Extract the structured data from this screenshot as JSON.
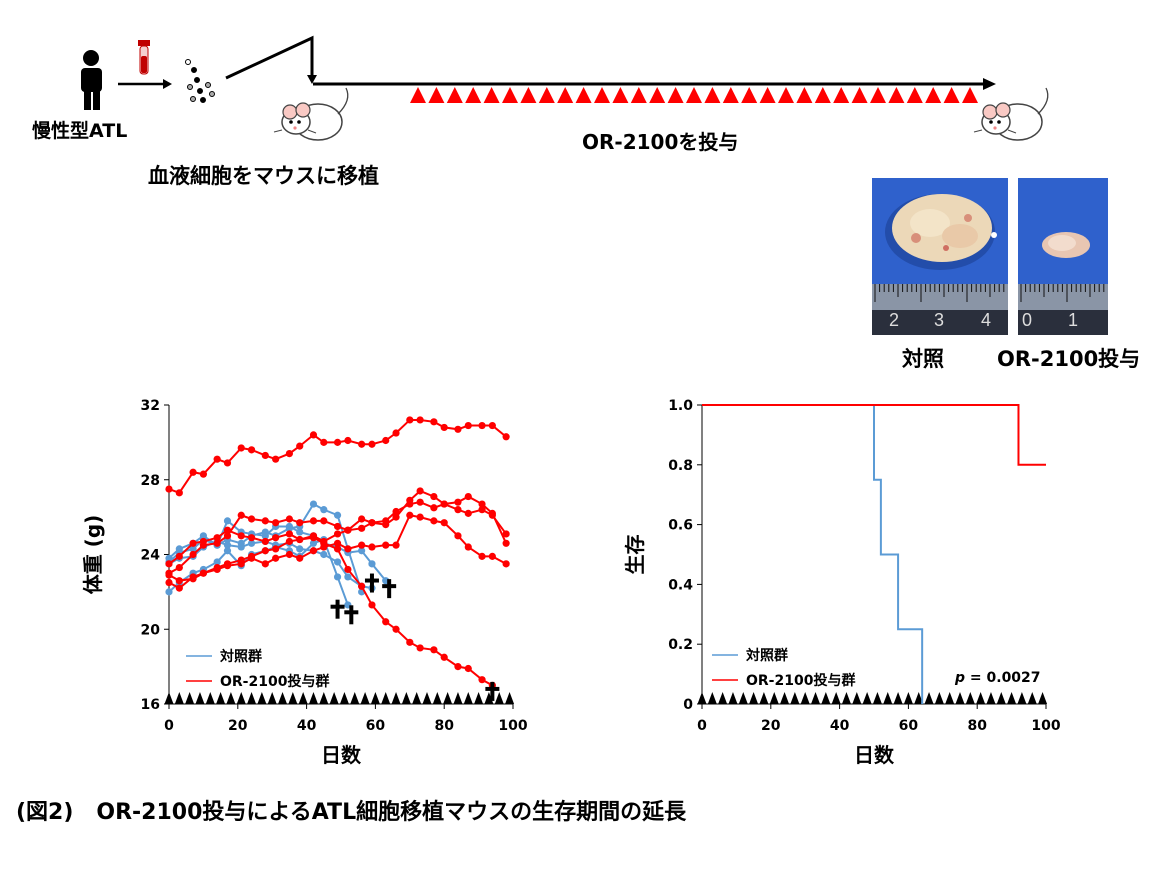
{
  "schema": {
    "patient_label": "慢性型ATL",
    "transplant_label": "血液細胞をマウスに移植",
    "treatment_label": "OR-2100を投与"
  },
  "photos": {
    "control": {
      "caption": "対照",
      "ruler_numbers": [
        "2",
        "3",
        "4"
      ]
    },
    "treated": {
      "caption": "OR-2100投与",
      "ruler_numbers": [
        "0",
        "1"
      ]
    }
  },
  "chart_data": [
    {
      "type": "line",
      "title": "",
      "xlabel": "日数",
      "ylabel": "体重 (g)",
      "xlim": [
        0,
        100
      ],
      "ylim": [
        16,
        32
      ],
      "xticks": [
        "0",
        "20",
        "40",
        "60",
        "80",
        "100"
      ],
      "yticks": [
        "16",
        "20",
        "24",
        "28",
        "32"
      ],
      "legend": {
        "position": "bottom-left",
        "entries": [
          {
            "name": "対照群",
            "color": "#5b9bd5"
          },
          {
            "name": "OR-2100投与群",
            "color": "#ff0000"
          }
        ]
      },
      "dosing_marker": "▲",
      "death_marker": "✝",
      "series": [
        {
          "group": "control",
          "color": "#5b9bd5",
          "points": [
            [
              0,
              22.0
            ],
            [
              3,
              22.5
            ],
            [
              7,
              23.0
            ],
            [
              10,
              23.2
            ],
            [
              14,
              23.6
            ],
            [
              17,
              24.2
            ],
            [
              21,
              23.4
            ],
            [
              24,
              24.0
            ],
            [
              28,
              24.2
            ],
            [
              31,
              24.4
            ],
            [
              35,
              24.2
            ],
            [
              38,
              23.9
            ],
            [
              42,
              24.6
            ],
            [
              45,
              24.8
            ],
            [
              49,
              22.8
            ],
            [
              52,
              21.3
            ]
          ]
        },
        {
          "group": "control",
          "color": "#5b9bd5",
          "points": [
            [
              0,
              23.6
            ],
            [
              3,
              24.1
            ],
            [
              7,
              24.3
            ],
            [
              10,
              24.8
            ],
            [
              14,
              24.5
            ],
            [
              17,
              24.8
            ],
            [
              21,
              24.6
            ],
            [
              24,
              25.0
            ],
            [
              28,
              25.2
            ],
            [
              31,
              25.0
            ],
            [
              35,
              25.4
            ],
            [
              38,
              25.5
            ],
            [
              42,
              26.7
            ],
            [
              45,
              26.4
            ],
            [
              49,
              26.1
            ],
            [
              52,
              24.3
            ],
            [
              56,
              22.0
            ]
          ]
        },
        {
          "group": "control",
          "color": "#5b9bd5",
          "points": [
            [
              0,
              23.8
            ],
            [
              3,
              24.3
            ],
            [
              7,
              24.6
            ],
            [
              10,
              25.0
            ],
            [
              14,
              24.5
            ],
            [
              17,
              25.8
            ],
            [
              21,
              25.2
            ],
            [
              24,
              25.1
            ],
            [
              28,
              25.0
            ],
            [
              31,
              25.5
            ],
            [
              35,
              25.5
            ],
            [
              38,
              25.2
            ],
            [
              42,
              25.0
            ],
            [
              45,
              24.6
            ],
            [
              49,
              24.4
            ],
            [
              52,
              24.1
            ],
            [
              56,
              24.2
            ],
            [
              59,
              23.5
            ],
            [
              63,
              22.6
            ]
          ]
        },
        {
          "group": "control",
          "color": "#5b9bd5",
          "points": [
            [
              0,
              23.5
            ],
            [
              3,
              23.8
            ],
            [
              7,
              23.9
            ],
            [
              10,
              24.4
            ],
            [
              14,
              24.7
            ],
            [
              17,
              24.5
            ],
            [
              21,
              24.4
            ],
            [
              24,
              24.6
            ],
            [
              28,
              24.7
            ],
            [
              31,
              24.5
            ],
            [
              35,
              24.6
            ],
            [
              38,
              24.3
            ],
            [
              42,
              24.2
            ],
            [
              45,
              24.0
            ],
            [
              49,
              23.6
            ],
            [
              52,
              22.8
            ],
            [
              56,
              22.3
            ],
            [
              59,
              22.2
            ]
          ]
        },
        {
          "group": "treated",
          "color": "#ff0000",
          "points": [
            [
              0,
              27.5
            ],
            [
              3,
              27.3
            ],
            [
              7,
              28.4
            ],
            [
              10,
              28.3
            ],
            [
              14,
              29.1
            ],
            [
              17,
              28.9
            ],
            [
              21,
              29.7
            ],
            [
              24,
              29.6
            ],
            [
              28,
              29.3
            ],
            [
              31,
              29.1
            ],
            [
              35,
              29.4
            ],
            [
              38,
              29.8
            ],
            [
              42,
              30.4
            ],
            [
              45,
              30.0
            ],
            [
              49,
              30.0
            ],
            [
              52,
              30.1
            ],
            [
              56,
              29.9
            ],
            [
              59,
              29.9
            ],
            [
              63,
              30.1
            ],
            [
              66,
              30.5
            ],
            [
              70,
              31.2
            ],
            [
              73,
              31.2
            ],
            [
              77,
              31.1
            ],
            [
              80,
              30.8
            ],
            [
              84,
              30.7
            ],
            [
              87,
              30.9
            ],
            [
              91,
              30.9
            ],
            [
              94,
              30.9
            ],
            [
              98,
              30.3
            ]
          ]
        },
        {
          "group": "treated",
          "color": "#ff0000",
          "points": [
            [
              0,
              23.5
            ],
            [
              3,
              23.9
            ],
            [
              7,
              24.6
            ],
            [
              10,
              24.7
            ],
            [
              14,
              24.9
            ],
            [
              17,
              25.3
            ],
            [
              21,
              25.0
            ],
            [
              24,
              24.9
            ],
            [
              28,
              24.7
            ],
            [
              31,
              24.9
            ],
            [
              35,
              25.1
            ],
            [
              38,
              24.8
            ],
            [
              42,
              24.9
            ],
            [
              45,
              24.6
            ],
            [
              49,
              24.3
            ],
            [
              52,
              23.2
            ],
            [
              56,
              22.3
            ],
            [
              59,
              21.3
            ],
            [
              63,
              20.4
            ],
            [
              66,
              20.0
            ],
            [
              70,
              19.3
            ],
            [
              73,
              19.0
            ],
            [
              77,
              18.9
            ],
            [
              80,
              18.5
            ],
            [
              84,
              18.0
            ],
            [
              87,
              17.9
            ],
            [
              91,
              17.3
            ],
            [
              94,
              17.0
            ]
          ]
        },
        {
          "group": "treated",
          "color": "#ff0000",
          "points": [
            [
              0,
              23.0
            ],
            [
              3,
              23.3
            ],
            [
              7,
              24.0
            ],
            [
              10,
              24.5
            ],
            [
              14,
              24.6
            ],
            [
              17,
              25.0
            ],
            [
              21,
              26.1
            ],
            [
              24,
              25.9
            ],
            [
              28,
              25.8
            ],
            [
              31,
              25.7
            ],
            [
              35,
              25.9
            ],
            [
              38,
              25.7
            ],
            [
              42,
              25.8
            ],
            [
              45,
              25.8
            ],
            [
              49,
              25.5
            ],
            [
              52,
              25.3
            ],
            [
              56,
              25.4
            ],
            [
              59,
              25.7
            ],
            [
              63,
              25.6
            ],
            [
              66,
              26.0
            ],
            [
              70,
              26.9
            ],
            [
              73,
              27.4
            ],
            [
              77,
              27.1
            ],
            [
              80,
              26.7
            ],
            [
              84,
              26.8
            ],
            [
              87,
              27.1
            ],
            [
              91,
              26.7
            ],
            [
              94,
              26.2
            ],
            [
              98,
              24.6
            ]
          ]
        },
        {
          "group": "treated",
          "color": "#ff0000",
          "points": [
            [
              0,
              22.5
            ],
            [
              3,
              22.2
            ],
            [
              7,
              22.8
            ],
            [
              10,
              23.0
            ],
            [
              14,
              23.3
            ],
            [
              17,
              23.5
            ],
            [
              21,
              23.7
            ],
            [
              24,
              23.9
            ],
            [
              28,
              24.2
            ],
            [
              31,
              24.3
            ],
            [
              35,
              24.7
            ],
            [
              38,
              24.8
            ],
            [
              42,
              25.0
            ],
            [
              45,
              24.7
            ],
            [
              49,
              25.1
            ],
            [
              52,
              25.3
            ],
            [
              56,
              25.9
            ],
            [
              59,
              25.7
            ],
            [
              63,
              25.8
            ],
            [
              66,
              26.3
            ],
            [
              70,
              26.7
            ],
            [
              73,
              26.8
            ],
            [
              77,
              26.5
            ],
            [
              80,
              26.7
            ],
            [
              84,
              26.4
            ],
            [
              87,
              26.2
            ],
            [
              91,
              26.4
            ],
            [
              94,
              26.1
            ],
            [
              98,
              25.1
            ]
          ]
        },
        {
          "group": "treated",
          "color": "#ff0000",
          "points": [
            [
              0,
              22.9
            ],
            [
              3,
              22.6
            ],
            [
              7,
              22.7
            ],
            [
              10,
              23.0
            ],
            [
              14,
              23.2
            ],
            [
              17,
              23.4
            ],
            [
              21,
              23.5
            ],
            [
              24,
              23.8
            ],
            [
              28,
              23.5
            ],
            [
              31,
              23.8
            ],
            [
              35,
              24.0
            ],
            [
              38,
              23.8
            ],
            [
              42,
              24.2
            ],
            [
              45,
              24.4
            ],
            [
              49,
              24.6
            ],
            [
              52,
              24.3
            ],
            [
              56,
              24.5
            ],
            [
              59,
              24.4
            ],
            [
              63,
              24.5
            ],
            [
              66,
              24.5
            ],
            [
              70,
              26.1
            ],
            [
              73,
              26.0
            ],
            [
              77,
              25.8
            ],
            [
              80,
              25.7
            ],
            [
              84,
              25.0
            ],
            [
              87,
              24.4
            ],
            [
              91,
              23.9
            ],
            [
              94,
              23.9
            ],
            [
              98,
              23.5
            ]
          ]
        }
      ],
      "deaths": [
        [
          49,
          21.1
        ],
        [
          53,
          20.8
        ],
        [
          59,
          22.5
        ],
        [
          64,
          22.2
        ],
        [
          94,
          16.7
        ]
      ],
      "doses": [
        0,
        3,
        6,
        9,
        12,
        15,
        18,
        21,
        24,
        27,
        30,
        33,
        36,
        39,
        42,
        45,
        48,
        51,
        54,
        57,
        60,
        63,
        66,
        69,
        72,
        75,
        78,
        81,
        84,
        87,
        90,
        93,
        96,
        99
      ]
    },
    {
      "type": "line",
      "title": "",
      "xlabel": "日数",
      "ylabel": "生存",
      "xlim": [
        0,
        100
      ],
      "ylim": [
        0,
        1.0
      ],
      "xticks": [
        "0",
        "20",
        "40",
        "60",
        "80",
        "100"
      ],
      "yticks": [
        "0",
        "0.2",
        "0.4",
        "0.6",
        "0.8",
        "1.0"
      ],
      "legend": {
        "position": "bottom-left",
        "entries": [
          {
            "name": "対照群",
            "color": "#5b9bd5"
          },
          {
            "name": "OR-2100投与群",
            "color": "#ff0000"
          }
        ]
      },
      "annotation": {
        "italic": "p",
        "text": " = 0.0027"
      },
      "dosing_marker": "▲",
      "series": [
        {
          "name": "対照群",
          "color": "#5b9bd5",
          "steps": [
            [
              0,
              1.0
            ],
            [
              50,
              0.75
            ],
            [
              52,
              0.5
            ],
            [
              57,
              0.25
            ],
            [
              64,
              0.0
            ]
          ]
        },
        {
          "name": "OR-2100投与群",
          "color": "#ff0000",
          "steps": [
            [
              0,
              1.0
            ],
            [
              92,
              0.8
            ],
            [
              100,
              0.8
            ]
          ]
        }
      ],
      "doses": [
        0,
        3,
        6,
        9,
        12,
        15,
        18,
        21,
        24,
        27,
        30,
        33,
        36,
        39,
        42,
        45,
        48,
        51,
        54,
        57,
        60,
        63,
        66,
        69,
        72,
        75,
        78,
        81,
        84,
        87,
        90,
        93,
        96,
        99
      ]
    }
  ],
  "figure_caption": "(図2)   OR-2100投与によるATL細胞移植マウスの生存期間の延長"
}
